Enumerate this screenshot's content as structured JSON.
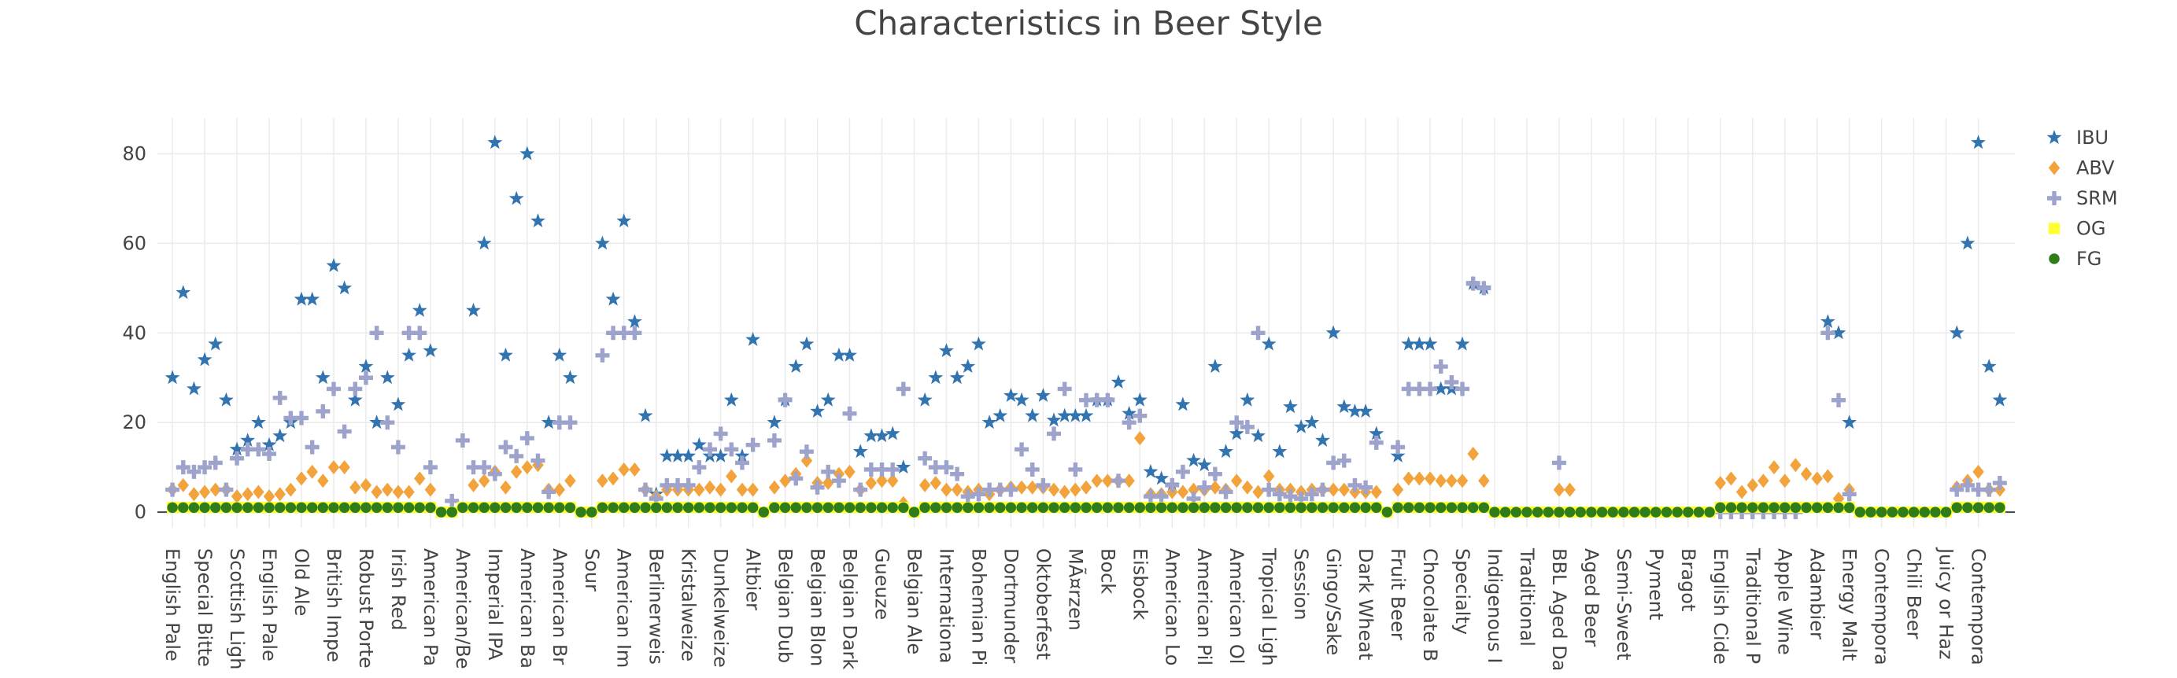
{
  "chart_data": {
    "type": "scatter",
    "title": "Characteristics in Beer Style",
    "categories": [
      "English Pale",
      null,
      null,
      "Special Bitte",
      null,
      null,
      "Scottish Ligh",
      null,
      null,
      "English Pale",
      null,
      null,
      "Old Ale",
      null,
      null,
      "British Impe",
      null,
      null,
      "Robust Porte",
      null,
      null,
      "Irish Red",
      null,
      null,
      "American Pa",
      null,
      null,
      "American/Be",
      null,
      null,
      "Imperial IPA",
      null,
      null,
      "American Ba",
      null,
      null,
      "American Br",
      null,
      null,
      "Sour",
      null,
      null,
      "American Im",
      null,
      null,
      "Berlinerweis",
      null,
      null,
      "Kristalweize",
      null,
      null,
      "Dunkelweize",
      null,
      null,
      "Altbier",
      null,
      null,
      "Belgian Dub",
      null,
      null,
      "Belgian Blon",
      null,
      null,
      "Belgian Dark",
      null,
      null,
      "Gueuze",
      null,
      null,
      "Belgian Ale",
      null,
      null,
      "Internationa",
      null,
      null,
      "Bohemian Pi",
      null,
      null,
      "Dortmunder",
      null,
      null,
      "Oktoberfest",
      null,
      null,
      "MÃ¤rzen",
      null,
      null,
      "Bock",
      null,
      null,
      "Eisbock",
      null,
      null,
      "American Lo",
      null,
      null,
      "American Pil",
      null,
      null,
      "American Ol",
      null,
      null,
      "Tropical Ligh",
      null,
      null,
      "Session",
      null,
      null,
      "Gingo/Sake",
      null,
      null,
      "Dark Wheat",
      null,
      null,
      "Fruit Beer",
      null,
      null,
      "Chocolate B",
      null,
      null,
      "Specialty",
      null,
      null,
      "Indigenous I",
      null,
      null,
      "Traditional",
      null,
      null,
      "BBL Aged Da",
      null,
      null,
      "Aged Beer",
      null,
      null,
      "Semi-Sweet",
      null,
      null,
      "Pyment",
      null,
      null,
      "Bragot",
      null,
      null,
      "English Cide",
      null,
      null,
      "Traditional P",
      null,
      null,
      "Apple Wine",
      null,
      null,
      "Adambier",
      null,
      null,
      "Energy Malt",
      null,
      null,
      "Contempora",
      null,
      null,
      "Chili Beer",
      null,
      null,
      "Juicy or Haz",
      null,
      null,
      "Contempora",
      null,
      null
    ],
    "series": [
      {
        "name": "IBU",
        "color": "#3274b0",
        "symbol": "star",
        "values": [
          30,
          49,
          27.5,
          34,
          37.5,
          25,
          14,
          16,
          20,
          15,
          17,
          20,
          47.5,
          47.5,
          30,
          55,
          50,
          25,
          32.5,
          20,
          30,
          24,
          35,
          45,
          36,
          null,
          null,
          null,
          45,
          60,
          82.5,
          35,
          70,
          80,
          65,
          20,
          35,
          30,
          null,
          null,
          60,
          47.5,
          65,
          42.5,
          21.5,
          4,
          12.5,
          12.5,
          12.5,
          15,
          12.5,
          12.5,
          25,
          12.5,
          38.5,
          null,
          20,
          25,
          32.5,
          37.5,
          22.5,
          25,
          35,
          35,
          13.5,
          17,
          17,
          17.5,
          10,
          null,
          25,
          30,
          36,
          30,
          32.5,
          37.5,
          20,
          21.5,
          26,
          25,
          21.5,
          26,
          20.5,
          21.5,
          21.5,
          21.5,
          25,
          25,
          29,
          22,
          25,
          9,
          7.5,
          6,
          24,
          11.5,
          10.5,
          32.5,
          13.5,
          17.5,
          25,
          17,
          37.5,
          13.5,
          23.5,
          19,
          20,
          16,
          40,
          23.5,
          22.5,
          22.5,
          17.5,
          null,
          12.5,
          37.5,
          37.5,
          37.5,
          27.5,
          27.5,
          37.5,
          51,
          50,
          null,
          null,
          null,
          null,
          null,
          null,
          null,
          null,
          null,
          null,
          null,
          null,
          null,
          null,
          null,
          null,
          null,
          null,
          null,
          null,
          null,
          null,
          null,
          null,
          null,
          null,
          null,
          null,
          null,
          null,
          null,
          42.5,
          40,
          20,
          null,
          null,
          null,
          null,
          null,
          null,
          null,
          null,
          null,
          40,
          60,
          82.5,
          32.5,
          25
        ]
      },
      {
        "name": "ABV",
        "color": "#f2a33c",
        "symbol": "diamond",
        "values": [
          5,
          6,
          4,
          4.5,
          5,
          5,
          3.5,
          4,
          4.5,
          3.5,
          4,
          5,
          7.5,
          9,
          7,
          10,
          10,
          5.5,
          6,
          4.5,
          5,
          4.5,
          4.5,
          7.5,
          5,
          null,
          null,
          null,
          6,
          7,
          9,
          5.5,
          9,
          10,
          10.5,
          5,
          5,
          7,
          null,
          null,
          7,
          7.5,
          9.5,
          9.5,
          5,
          3.5,
          5,
          5,
          5,
          5,
          5.5,
          5,
          8,
          5,
          5,
          null,
          5.5,
          7,
          8.5,
          11.5,
          6.5,
          6.5,
          8.5,
          9,
          5,
          6.5,
          7,
          7,
          2,
          null,
          6,
          6.5,
          5,
          5,
          4.5,
          5,
          4,
          5,
          5.5,
          5.5,
          5.5,
          5.5,
          5,
          4.5,
          5,
          5.5,
          7,
          7,
          7,
          7,
          16.5,
          4,
          4,
          4.5,
          4.5,
          5,
          5,
          5.5,
          5,
          7,
          5.5,
          4.5,
          8,
          5,
          5,
          4.5,
          5,
          5,
          5,
          5,
          4.5,
          4.5,
          4.5,
          null,
          5,
          7.5,
          7.5,
          7.5,
          7,
          7,
          7,
          13,
          7,
          null,
          null,
          null,
          null,
          null,
          null,
          5,
          5,
          null,
          null,
          null,
          null,
          null,
          null,
          null,
          null,
          null,
          null,
          null,
          null,
          null,
          6.5,
          7.5,
          4.5,
          6,
          7,
          10,
          7,
          10.5,
          8.5,
          7.5,
          8,
          3,
          5,
          null,
          null,
          null,
          null,
          null,
          null,
          null,
          null,
          null,
          5.5,
          7,
          9,
          5,
          5
        ]
      },
      {
        "name": "SRM",
        "color": "#9ea3cc",
        "symbol": "cross",
        "values": [
          5,
          10,
          9,
          10,
          11,
          5,
          12,
          14,
          14,
          13,
          25.5,
          21,
          21,
          14.5,
          22.5,
          27.5,
          18,
          27.5,
          30,
          40,
          20,
          14.5,
          40,
          40,
          10,
          null,
          2.5,
          16,
          10,
          10,
          8.5,
          14.5,
          12.5,
          16.5,
          11.5,
          4.5,
          20,
          20,
          null,
          null,
          35,
          40,
          40,
          40,
          5,
          3,
          6,
          6,
          6,
          10,
          14,
          17.5,
          14,
          11,
          15,
          null,
          16,
          25,
          7.5,
          13.5,
          5.5,
          9,
          7,
          22,
          5,
          9.5,
          9.5,
          9.5,
          27.5,
          null,
          12,
          10,
          10,
          8.5,
          3.5,
          4,
          5,
          5,
          5,
          14,
          9.5,
          6,
          17.5,
          27.5,
          9.5,
          25,
          25,
          25,
          7,
          20,
          21.5,
          3.5,
          3.5,
          6,
          9,
          3,
          5.5,
          8.5,
          4.5,
          20,
          19,
          40,
          5,
          4,
          3.5,
          3,
          4,
          5,
          11,
          11.5,
          6,
          5.5,
          15.5,
          null,
          14.5,
          27.5,
          27.5,
          27.5,
          32.5,
          29,
          27.5,
          51,
          50,
          null,
          null,
          null,
          null,
          null,
          null,
          11,
          null,
          null,
          null,
          null,
          null,
          null,
          null,
          null,
          null,
          null,
          null,
          null,
          null,
          null,
          0,
          0,
          0,
          0,
          0,
          0,
          0,
          0,
          null,
          null,
          40,
          25,
          4,
          null,
          null,
          null,
          null,
          null,
          null,
          null,
          null,
          null,
          5,
          6,
          5,
          5,
          6.5
        ]
      },
      {
        "name": "OG",
        "color": "#ffff33",
        "symbol": "square",
        "values": [
          1.05,
          1.05,
          1.05,
          1.05,
          1.05,
          1.05,
          1.05,
          1.05,
          1.05,
          1.05,
          1.05,
          1.05,
          1.05,
          1.05,
          1.05,
          1.05,
          1.05,
          1.05,
          1.05,
          1.05,
          1.05,
          1.05,
          1.05,
          1.05,
          1.05,
          0,
          0,
          1.05,
          1.05,
          1.05,
          1.05,
          1.05,
          1.05,
          1.05,
          1.05,
          1.05,
          1.05,
          1.05,
          0,
          0,
          1.05,
          1.05,
          1.05,
          1.05,
          1.05,
          1.05,
          1.05,
          1.05,
          1.05,
          1.05,
          1.05,
          1.05,
          1.05,
          1.05,
          1.05,
          0,
          1.05,
          1.05,
          1.05,
          1.05,
          1.05,
          1.05,
          1.05,
          1.05,
          1.05,
          1.05,
          1.05,
          1.05,
          1.05,
          0,
          1.05,
          1.05,
          1.05,
          1.05,
          1.05,
          1.05,
          1.05,
          1.05,
          1.05,
          1.05,
          1.05,
          1.05,
          1.05,
          1.05,
          1.05,
          1.05,
          1.05,
          1.05,
          1.05,
          1.05,
          1.05,
          1.05,
          1.05,
          1.05,
          1.05,
          1.05,
          1.05,
          1.05,
          1.05,
          1.05,
          1.05,
          1.05,
          1.05,
          1.05,
          1.05,
          1.05,
          1.05,
          1.05,
          1.05,
          1.05,
          1.05,
          1.05,
          1.05,
          0,
          1.05,
          1.05,
          1.05,
          1.05,
          1.05,
          1.05,
          1.05,
          1.05,
          1.05,
          0,
          0,
          0,
          0,
          0,
          0,
          0,
          0,
          0,
          0,
          0,
          0,
          0,
          0,
          0,
          0,
          0,
          0,
          0,
          0,
          0,
          1.06,
          1.06,
          1.06,
          1.06,
          1.06,
          1.06,
          1.06,
          1.06,
          1.06,
          1.06,
          1.06,
          1.06,
          1.06,
          0,
          0,
          0,
          0,
          0,
          0,
          0,
          0,
          0,
          1.06,
          1.06,
          1.06,
          1.06,
          1.06
        ]
      },
      {
        "name": "FG",
        "color": "#2f7d1a",
        "symbol": "circle",
        "values": [
          1.01,
          1.01,
          1.01,
          1.01,
          1.01,
          1.01,
          1.01,
          1.01,
          1.01,
          1.01,
          1.01,
          1.01,
          1.01,
          1.01,
          1.01,
          1.01,
          1.01,
          1.01,
          1.01,
          1.01,
          1.01,
          1.01,
          1.01,
          1.01,
          1.01,
          0,
          0,
          1.01,
          1.01,
          1.01,
          1.01,
          1.01,
          1.01,
          1.01,
          1.01,
          1.01,
          1.01,
          1.01,
          0,
          0,
          1.01,
          1.01,
          1.01,
          1.01,
          1.01,
          1.01,
          1.01,
          1.01,
          1.01,
          1.01,
          1.01,
          1.01,
          1.01,
          1.01,
          1.01,
          0,
          1.01,
          1.01,
          1.01,
          1.01,
          1.01,
          1.01,
          1.01,
          1.01,
          1.01,
          1.01,
          1.01,
          1.01,
          1.01,
          0,
          1.01,
          1.01,
          1.01,
          1.01,
          1.01,
          1.01,
          1.01,
          1.01,
          1.01,
          1.01,
          1.01,
          1.01,
          1.01,
          1.01,
          1.01,
          1.01,
          1.01,
          1.01,
          1.01,
          1.01,
          1.01,
          1.01,
          1.01,
          1.01,
          1.01,
          1.01,
          1.01,
          1.01,
          1.01,
          1.01,
          1.01,
          1.01,
          1.01,
          1.01,
          1.01,
          1.01,
          1.01,
          1.01,
          1.01,
          1.01,
          1.01,
          1.01,
          1.01,
          0,
          1.01,
          1.01,
          1.01,
          1.01,
          1.01,
          1.01,
          1.01,
          1.01,
          1.01,
          0,
          0,
          0,
          0,
          0,
          0,
          0,
          0,
          0,
          0,
          0,
          0,
          0,
          0,
          0,
          0,
          0,
          0,
          0,
          0,
          0,
          1.01,
          1.01,
          1.01,
          1.01,
          1.01,
          1.01,
          1.01,
          1.01,
          1.01,
          1.01,
          1.01,
          1.01,
          1.01,
          0,
          0,
          0,
          0,
          0,
          0,
          0,
          0,
          0,
          1.01,
          1.01,
          1.01,
          1.01,
          1.01
        ]
      }
    ],
    "ylim": [
      -3.5,
      88
    ],
    "yticks": [
      0,
      20,
      40,
      60,
      80
    ],
    "grid": true,
    "legend": "right"
  }
}
